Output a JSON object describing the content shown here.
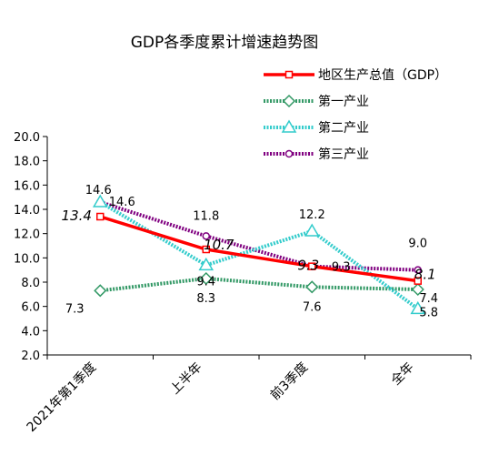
{
  "chart_data": {
    "type": "line",
    "title": "GDP各季度累计增速趋势图",
    "categories": [
      "2021年第1季度",
      "上半年",
      "前3季度",
      "全年"
    ],
    "ylim": [
      2.0,
      20.0
    ],
    "ytick_step": 2,
    "yticks": [
      "2.0",
      "4.0",
      "6.0",
      "8.0",
      "10.0",
      "12.0",
      "14.0",
      "16.0",
      "18.0",
      "20.0"
    ],
    "grid": false,
    "legend_position": "top-right",
    "series": [
      {
        "name": "地区生产总值（GDP）",
        "values": [
          13.4,
          10.7,
          9.3,
          8.1
        ],
        "labels": [
          "13.4",
          "10.7",
          "9.3",
          "8.1"
        ],
        "color": "#ff0000",
        "marker": "square",
        "line": "solid-thick",
        "label_style": "italic"
      },
      {
        "name": "第一产业",
        "values": [
          7.3,
          8.3,
          7.6,
          7.4
        ],
        "labels": [
          "7.3",
          "8.3",
          "7.6",
          "7.4"
        ],
        "color": "#339966",
        "marker": "diamond",
        "line": "dashed",
        "label_style": "normal"
      },
      {
        "name": "第二产业",
        "values": [
          14.6,
          9.4,
          12.2,
          5.8
        ],
        "labels": [
          "14.6",
          "9.4",
          "12.2",
          "5.8"
        ],
        "color": "#33cccc",
        "marker": "triangle",
        "line": "dashed",
        "label_style": "normal"
      },
      {
        "name": "第三产业",
        "values": [
          14.6,
          11.8,
          9.3,
          9.0
        ],
        "labels": [
          "14.6",
          "11.8",
          "9.3",
          "9.0"
        ],
        "color": "#800080",
        "marker": "circle",
        "line": "dashed",
        "label_style": "normal"
      }
    ]
  }
}
